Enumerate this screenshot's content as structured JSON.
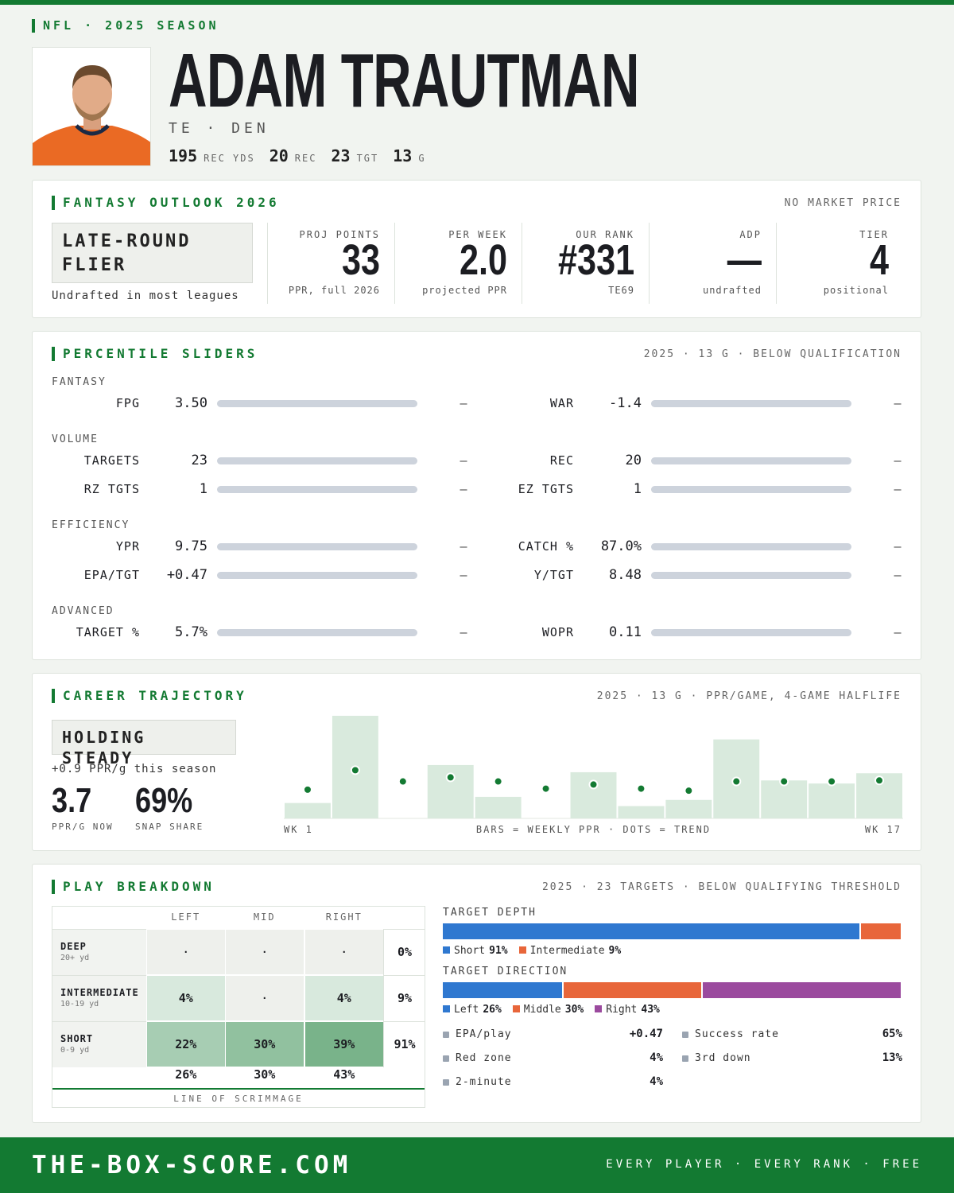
{
  "header": {
    "kicker": "NFL · 2025 SEASON",
    "name": "ADAM TRAUTMAN",
    "position": "TE · DEN",
    "stats": [
      {
        "value": 195,
        "label": "REC YDS"
      },
      {
        "value": 20,
        "label": "REC"
      },
      {
        "value": 23,
        "label": "TGT"
      },
      {
        "value": 13,
        "label": "G"
      }
    ]
  },
  "outlook": {
    "title": "FANTASY OUTLOOK 2026",
    "note": "NO MARKET PRICE",
    "badge": "LATE-ROUND FLIER",
    "badge_sub": "Undrafted in most leagues",
    "metrics": [
      {
        "label": "PROJ POINTS",
        "value": "33",
        "sub": "PPR, full 2026"
      },
      {
        "label": "PER WEEK",
        "value": "2.0",
        "sub": "projected PPR"
      },
      {
        "label": "OUR RANK",
        "value": "#331",
        "sub": "TE69"
      },
      {
        "label": "ADP",
        "value": "—",
        "sub": "undrafted"
      },
      {
        "label": "TIER",
        "value": "4",
        "sub": "positional"
      }
    ]
  },
  "sliders": {
    "title": "PERCENTILE SLIDERS",
    "note": "2025 · 13 G · BELOW QUALIFICATION",
    "groups": [
      {
        "name": "FANTASY",
        "rows": [
          {
            "left": {
              "label": "FPG",
              "value": "3.50",
              "pct": "—"
            },
            "right": {
              "label": "WAR",
              "value": "-1.4",
              "pct": "—"
            }
          }
        ]
      },
      {
        "name": "VOLUME",
        "rows": [
          {
            "left": {
              "label": "TARGETS",
              "value": "23",
              "pct": "—"
            },
            "right": {
              "label": "REC",
              "value": "20",
              "pct": "—"
            }
          },
          {
            "left": {
              "label": "RZ TGTS",
              "value": "1",
              "pct": "—"
            },
            "right": {
              "label": "EZ TGTS",
              "value": "1",
              "pct": "—"
            }
          }
        ]
      },
      {
        "name": "EFFICIENCY",
        "rows": [
          {
            "left": {
              "label": "YPR",
              "value": "9.75",
              "pct": "—"
            },
            "right": {
              "label": "CATCH %",
              "value": "87.0%",
              "pct": "—"
            }
          },
          {
            "left": {
              "label": "EPA/TGT",
              "value": "+0.47",
              "pct": "—"
            },
            "right": {
              "label": "Y/TGT",
              "value": "8.48",
              "pct": "—"
            }
          }
        ]
      },
      {
        "name": "ADVANCED",
        "rows": [
          {
            "left": {
              "label": "TARGET %",
              "value": "5.7%",
              "pct": "—"
            },
            "right": {
              "label": "WOPR",
              "value": "0.11",
              "pct": "—"
            }
          }
        ]
      }
    ]
  },
  "career": {
    "title": "CAREER TRAJECTORY",
    "note": "2025 · 13 G · PPR/GAME, 4-GAME HALFLIFE",
    "badge": "HOLDING STEADY",
    "badge_sub": "+0.9 PPR/g this season",
    "big": [
      {
        "value": "3.7",
        "label": "PPR/G NOW"
      },
      {
        "value": "69%",
        "label": "SNAP SHARE"
      }
    ],
    "chart_data": {
      "type": "bar",
      "x_start_label": "WK 1",
      "x_end_label": "WK 17",
      "caption": "BARS = WEEKLY PPR · DOTS = TREND",
      "series": [
        {
          "name": "Weekly PPR",
          "color": "#d9eadd",
          "values": [
            1.5,
            10.0,
            0,
            5.2,
            2.1,
            0,
            4.5,
            1.2,
            1.8,
            7.7,
            3.7,
            3.4,
            4.4
          ]
        },
        {
          "name": "Trend",
          "color": "#137a32",
          "values": [
            2.8,
            4.7,
            3.6,
            4.0,
            3.6,
            2.9,
            3.3,
            2.9,
            2.7,
            3.6,
            3.6,
            3.6,
            3.7
          ]
        }
      ]
    }
  },
  "play": {
    "title": "PLAY BREAKDOWN",
    "note": "2025 · 23 TARGETS · BELOW QUALIFYING THRESHOLD",
    "columns": [
      "LEFT",
      "MID",
      "RIGHT"
    ],
    "rows": [
      {
        "name": "DEEP",
        "sub": "20+ yd",
        "cells": [
          "·",
          "·",
          "·"
        ],
        "total": "0%"
      },
      {
        "name": "INTERMEDIATE",
        "sub": "10-19 yd",
        "cells": [
          "4%",
          "·",
          "4%"
        ],
        "total": "9%"
      },
      {
        "name": "SHORT",
        "sub": "0-9 yd",
        "cells": [
          "22%",
          "30%",
          "39%"
        ],
        "total": "91%"
      }
    ],
    "column_totals": [
      "26%",
      "30%",
      "43%"
    ],
    "footer": "LINE OF SCRIMMAGE",
    "target_depth": {
      "label": "TARGET DEPTH",
      "segments": [
        {
          "name": "Short",
          "value": 91,
          "value_label": "91%",
          "color": "#2f78d0"
        },
        {
          "name": "Intermediate",
          "value": 9,
          "value_label": "9%",
          "color": "#e8663a"
        }
      ]
    },
    "target_direction": {
      "label": "TARGET DIRECTION",
      "segments": [
        {
          "name": "Left",
          "value": 26,
          "value_label": "26%",
          "color": "#2f78d0"
        },
        {
          "name": "Middle",
          "value": 30,
          "value_label": "30%",
          "color": "#e8663a"
        },
        {
          "name": "Right",
          "value": 43,
          "value_label": "43%",
          "color": "#9b4a9e"
        }
      ]
    },
    "stats": [
      {
        "label": "EPA/play",
        "value": "+0.47"
      },
      {
        "label": "Success rate",
        "value": "65%"
      },
      {
        "label": "Red zone",
        "value": "4%"
      },
      {
        "label": "3rd down",
        "value": "13%"
      },
      {
        "label": "2-minute",
        "value": "4%"
      }
    ]
  },
  "footer": {
    "site": "THE-BOX-SCORE.COM",
    "tagline": "EVERY PLAYER · EVERY RANK · FREE"
  }
}
